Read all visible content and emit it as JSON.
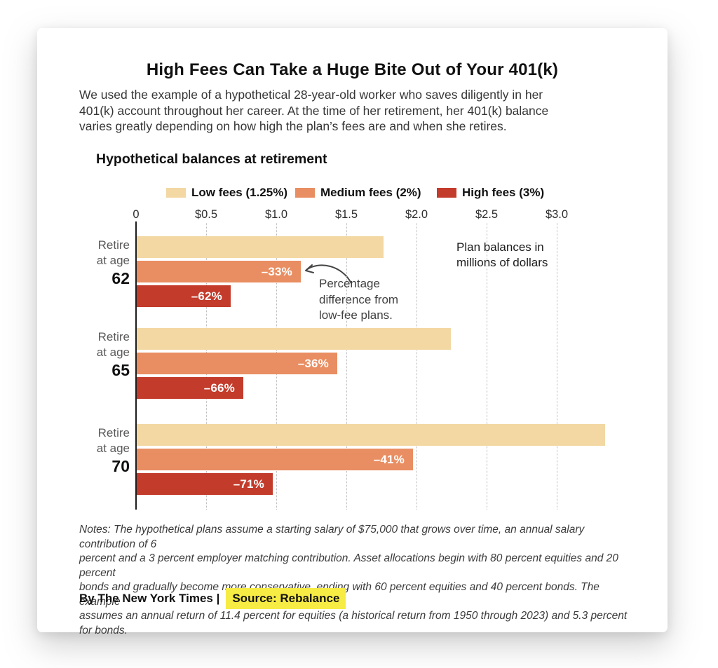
{
  "header": {
    "title": "High Fees Can Take a Huge Bite Out of Your 401(k)",
    "intro_lines": [
      "We used the example of a hypothetical 28-year-old worker who saves diligently in her",
      "401(k) account throughout her career. At the time of her retirement, her 401(k) balance",
      "varies greatly depending on how high the plan’s fees are and when she retires."
    ]
  },
  "chart": {
    "title": "Hypothetical balances at retirement",
    "legend": [
      {
        "label": "Low fees (1.25%)",
        "color": "#F3D8A3"
      },
      {
        "label": "Medium fees (2%)",
        "color": "#E98E62"
      },
      {
        "label": "High fees (3%)",
        "color": "#C33B2B"
      }
    ],
    "unit_note_lines": [
      "Plan balances in",
      "millions of dollars"
    ],
    "annotation_lines": [
      "Percentage",
      "difference from",
      "low-fee plans."
    ]
  },
  "chart_data": {
    "type": "bar",
    "orientation": "horizontal",
    "title": "Hypothetical balances at retirement",
    "xlabel": "Plan balances in millions of dollars",
    "xlim": [
      0,
      3.4
    ],
    "grid": "vertical-dotted",
    "legend_position": "top",
    "x_axis_ticks": [
      {
        "label": "0",
        "value": 0
      },
      {
        "label": "$0.5",
        "value": 0.5
      },
      {
        "label": "$1.0",
        "value": 1.0
      },
      {
        "label": "$1.5",
        "value": 1.5
      },
      {
        "label": "$2.0",
        "value": 2.0
      },
      {
        "label": "$2.5",
        "value": 2.5
      },
      {
        "label": "$3.0",
        "value": 3.0
      }
    ],
    "series_meta": [
      {
        "id": "low",
        "name": "Low fees (1.25%)",
        "color": "#F3D8A3"
      },
      {
        "id": "medium",
        "name": "Medium fees (2%)",
        "color": "#E98E62"
      },
      {
        "id": "high",
        "name": "High fees (3%)",
        "color": "#C33B2B"
      }
    ],
    "groups": [
      {
        "label_lines": [
          "Retire",
          "at age"
        ],
        "age": "62",
        "bars": [
          {
            "series": "low",
            "value": 1.76,
            "label": ""
          },
          {
            "series": "medium",
            "value": 1.17,
            "label": "–33%"
          },
          {
            "series": "high",
            "value": 0.67,
            "label": "–62%"
          }
        ]
      },
      {
        "label_lines": [
          "Retire",
          "at age"
        ],
        "age": "65",
        "bars": [
          {
            "series": "low",
            "value": 2.24,
            "label": ""
          },
          {
            "series": "medium",
            "value": 1.43,
            "label": "–36%"
          },
          {
            "series": "high",
            "value": 0.76,
            "label": "–66%"
          }
        ]
      },
      {
        "label_lines": [
          "Retire",
          "at age"
        ],
        "age": "70",
        "bars": [
          {
            "series": "low",
            "value": 3.34,
            "label": ""
          },
          {
            "series": "medium",
            "value": 1.97,
            "label": "–41%"
          },
          {
            "series": "high",
            "value": 0.97,
            "label": "–71%"
          }
        ]
      }
    ]
  },
  "notes_lines": [
    "Notes: The hypothetical plans assume a starting salary of $75,000 that grows over time, an annual salary contribution of 6",
    "percent and a 3 percent employer matching contribution. Asset allocations begin with 80 percent equities and 20 percent",
    "bonds and gradually become more conservative, ending with 60 percent equities and 40 percent bonds. The example",
    "assumes an annual return of 11.4 percent for equities (a historical return from 1950 through 2023) and 5.3 percent for bonds."
  ],
  "byline": {
    "credit": "By The New York Times |",
    "source": "Source: Rebalance",
    "highlight_color": "#F7EC44"
  }
}
